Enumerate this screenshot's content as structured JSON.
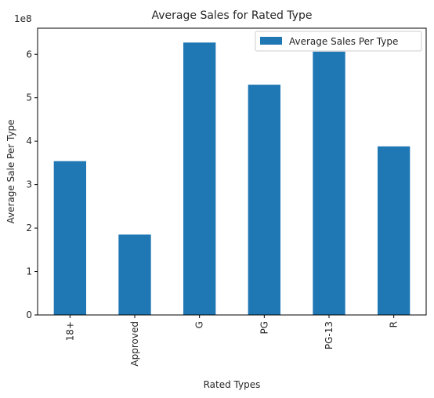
{
  "chart_data": {
    "type": "bar",
    "title": "Average Sales for Rated Type",
    "xlabel": "Rated Types",
    "ylabel": "Average Sale Per Type",
    "offset_text": "1e8",
    "categories": [
      "18+",
      "Approved",
      "G",
      "PG",
      "PG-13",
      "R"
    ],
    "series": [
      {
        "name": "Average Sales Per Type",
        "values": [
          354000000,
          185000000,
          627000000,
          530000000,
          606000000,
          388000000
        ],
        "color": "#1f77b4"
      }
    ],
    "ylim": [
      0,
      660000000
    ],
    "y_ticks": [
      0,
      1,
      2,
      3,
      4,
      5,
      6
    ],
    "y_tick_scale": 100000000,
    "grid": false,
    "legend_position": "top-right"
  }
}
